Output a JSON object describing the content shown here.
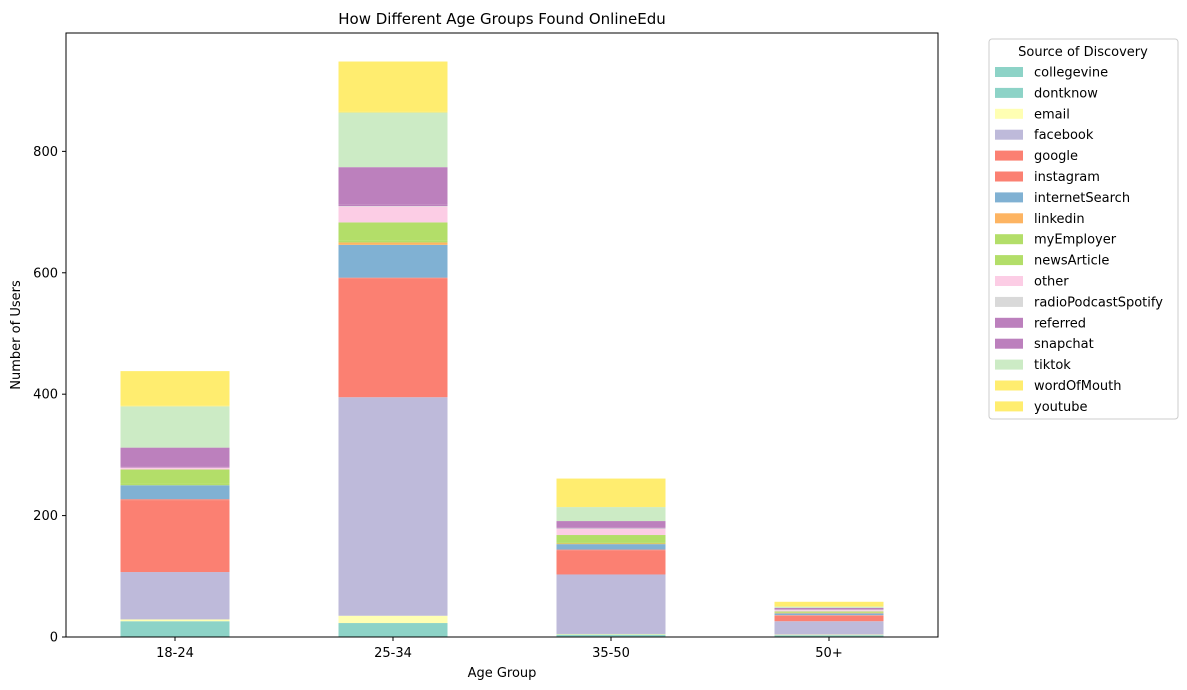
{
  "chart_data": {
    "type": "bar",
    "stacked": true,
    "title": "How Different Age Groups Found OnlineEdu",
    "xlabel": "Age Group",
    "ylabel": "Number of Users",
    "ylim": [
      0,
      995
    ],
    "yticks": [
      0,
      200,
      400,
      600,
      800
    ],
    "grid": false,
    "legend_title": "Source of Discovery",
    "legend_position": "outside-right",
    "categories": [
      "18-24",
      "25-34",
      "35-50",
      "50+"
    ],
    "series": [
      {
        "name": "collegevine",
        "color": "#8dd3c7",
        "values": [
          0,
          0,
          0,
          0
        ]
      },
      {
        "name": "dontknow",
        "color": "#8dd3c7",
        "values": [
          26,
          23,
          4,
          3
        ]
      },
      {
        "name": "email",
        "color": "#ffffb3",
        "values": [
          3,
          12,
          1,
          1
        ]
      },
      {
        "name": "facebook",
        "color": "#bebada",
        "values": [
          78,
          360,
          98,
          22
        ]
      },
      {
        "name": "google",
        "color": "#fb8072",
        "values": [
          118,
          195,
          40,
          9
        ]
      },
      {
        "name": "instagram",
        "color": "#fb8072",
        "values": [
          2,
          2,
          1,
          1
        ]
      },
      {
        "name": "internetSearch",
        "color": "#80b1d3",
        "values": [
          23,
          54,
          9,
          3
        ]
      },
      {
        "name": "linkedin",
        "color": "#fdb462",
        "values": [
          0,
          4,
          1,
          1
        ]
      },
      {
        "name": "myEmployer",
        "color": "#b3de69",
        "values": [
          3,
          3,
          1,
          0
        ]
      },
      {
        "name": "newsArticle",
        "color": "#b3de69",
        "values": [
          23,
          30,
          13,
          2
        ]
      },
      {
        "name": "other",
        "color": "#fccde5",
        "values": [
          3,
          26,
          10,
          2
        ]
      },
      {
        "name": "radioPodcastSpotify",
        "color": "#d9d9d9",
        "values": [
          0,
          1,
          1,
          1
        ]
      },
      {
        "name": "referred",
        "color": "#bc80bd",
        "values": [
          2,
          3,
          1,
          1
        ]
      },
      {
        "name": "snapchat",
        "color": "#bc80bd",
        "values": [
          31,
          61,
          11,
          2
        ]
      },
      {
        "name": "tiktok",
        "color": "#ccebc5",
        "values": [
          68,
          90,
          23,
          2
        ]
      },
      {
        "name": "wordOfMouth",
        "color": "#ffed6f",
        "values": [
          1,
          1,
          1,
          1
        ]
      },
      {
        "name": "youtube",
        "color": "#ffed6f",
        "values": [
          57,
          83,
          46,
          7
        ]
      }
    ]
  }
}
